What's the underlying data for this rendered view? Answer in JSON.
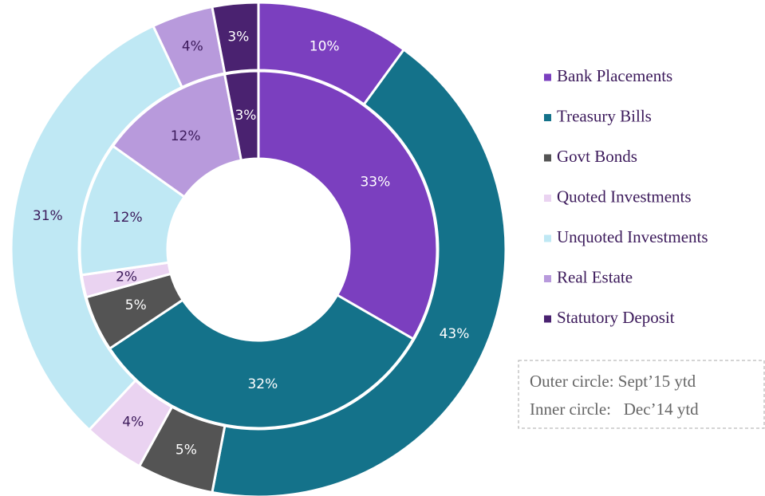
{
  "chart_data": {
    "type": "donut",
    "categories": [
      "Bank Placements",
      "Treasury Bills",
      "Govt Bonds",
      "Quoted Investments",
      "Unquoted Investments",
      "Real Estate",
      "Statutory Deposit"
    ],
    "colors": [
      "#7b3fbf",
      "#14728a",
      "#545454",
      "#ead3f1",
      "#bfe8f4",
      "#b89adc",
      "#4a2270"
    ],
    "series": [
      {
        "values": [
          10,
          43,
          5,
          4,
          31,
          4,
          3
        ],
        "value_labels": [
          "10%",
          "43%",
          "5%",
          "4%",
          "31%",
          "4%",
          "3%"
        ]
      },
      {
        "values": [
          33,
          32,
          5,
          2,
          12,
          12,
          3
        ],
        "value_labels": [
          "33%",
          "32%",
          "5%",
          "2%",
          "12%",
          "12%",
          "3%"
        ]
      }
    ],
    "annotations": [
      "Outer circle: Sept’15 ytd",
      "Inner circle:   Dec’14 ytd"
    ],
    "legend": "right"
  }
}
